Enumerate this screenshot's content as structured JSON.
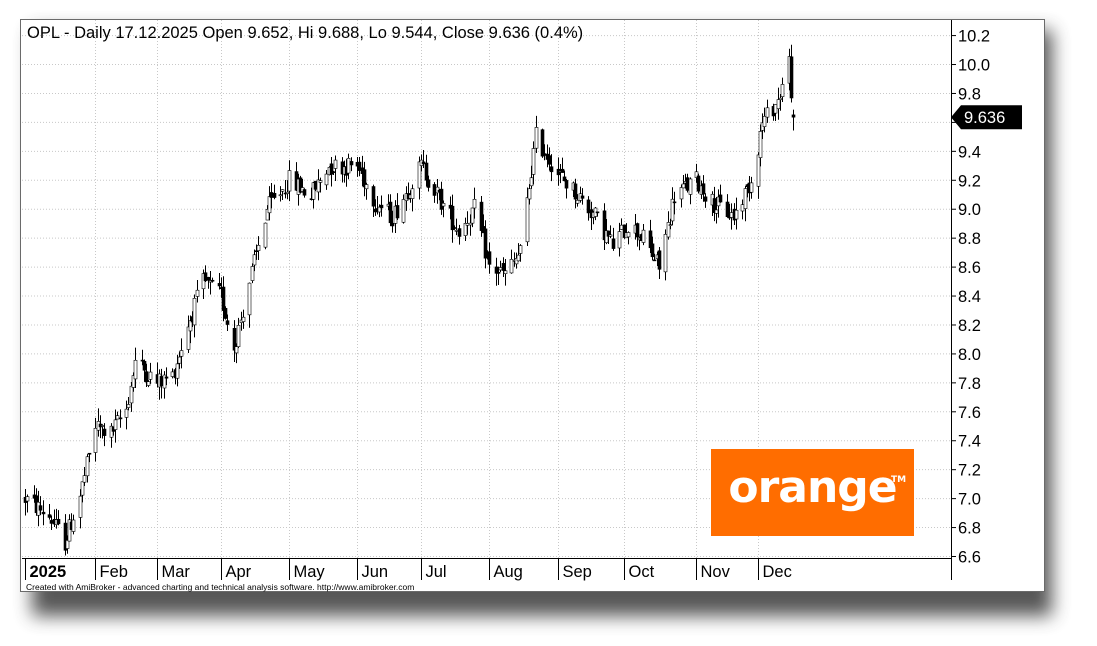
{
  "title": "OPL - Daily 17.12.2025 Open 9.652, Hi 9.688, Lo 9.544, Close 9.636 (0.4%)",
  "credit": "Created with AmiBroker - advanced charting and technical analysis software. http://www.amibroker.com",
  "logo": {
    "text": "orange",
    "tm": "TM",
    "color": "#ff6d00"
  },
  "chart_data": {
    "type": "candlestick",
    "symbol": "OPL",
    "last_price_label": "9.636",
    "ylim": [
      6.58,
      10.25
    ],
    "y_ticks": [
      "6.6",
      "6.8",
      "7.0",
      "7.2",
      "7.4",
      "7.6",
      "7.8",
      "8.0",
      "8.2",
      "8.4",
      "8.6",
      "8.8",
      "9.0",
      "9.2",
      "9.4",
      "9.6",
      "9.8",
      "10.0",
      "10.2"
    ],
    "x_labels": [
      {
        "label": "2025",
        "date": "2025-01-02",
        "bold": true
      },
      {
        "label": "Feb",
        "date": "2025-02-03"
      },
      {
        "label": "Mar",
        "date": "2025-03-03"
      },
      {
        "label": "Apr",
        "date": "2025-04-01"
      },
      {
        "label": "May",
        "date": "2025-05-02"
      },
      {
        "label": "Jun",
        "date": "2025-06-02"
      },
      {
        "label": "Jul",
        "date": "2025-07-01"
      },
      {
        "label": "Aug",
        "date": "2025-08-01"
      },
      {
        "label": "Sep",
        "date": "2025-09-01"
      },
      {
        "label": "Oct",
        "date": "2025-10-01"
      },
      {
        "label": "Nov",
        "date": "2025-11-03"
      },
      {
        "label": "Dec",
        "date": "2025-12-01"
      }
    ],
    "series_colors": {
      "up": "#ffffff",
      "down": "#000000",
      "outline": "#000000",
      "last_price_bg": "#000000"
    },
    "grid": true,
    "x_path": [
      [
        "2025-01-02",
        7.0
      ],
      [
        "2025-01-13",
        6.88
      ],
      [
        "2025-01-20",
        6.7
      ],
      [
        "2025-01-27",
        7.02
      ],
      [
        "2025-02-03",
        7.5
      ],
      [
        "2025-02-10",
        7.45
      ],
      [
        "2025-02-17",
        7.62
      ],
      [
        "2025-02-21",
        7.95
      ],
      [
        "2025-03-03",
        7.8
      ],
      [
        "2025-03-10",
        7.85
      ],
      [
        "2025-03-17",
        8.2
      ],
      [
        "2025-03-24",
        8.5
      ],
      [
        "2025-04-01",
        8.4
      ],
      [
        "2025-04-07",
        8.05
      ],
      [
        "2025-04-14",
        8.5
      ],
      [
        "2025-04-22",
        9.0
      ],
      [
        "2025-05-02",
        9.2
      ],
      [
        "2025-05-12",
        9.1
      ],
      [
        "2025-05-20",
        9.3
      ],
      [
        "2025-06-02",
        9.3
      ],
      [
        "2025-06-10",
        9.05
      ],
      [
        "2025-06-18",
        8.95
      ],
      [
        "2025-07-01",
        9.3
      ],
      [
        "2025-07-10",
        9.05
      ],
      [
        "2025-07-18",
        8.85
      ],
      [
        "2025-07-25",
        9.0
      ],
      [
        "2025-08-01",
        8.6
      ],
      [
        "2025-08-08",
        8.55
      ],
      [
        "2025-08-15",
        8.7
      ],
      [
        "2025-08-22",
        9.5
      ],
      [
        "2025-09-01",
        9.25
      ],
      [
        "2025-09-10",
        9.1
      ],
      [
        "2025-09-18",
        8.95
      ],
      [
        "2025-09-26",
        8.75
      ],
      [
        "2025-10-03",
        8.9
      ],
      [
        "2025-10-10",
        8.8
      ],
      [
        "2025-10-17",
        8.6
      ],
      [
        "2025-10-24",
        9.1
      ],
      [
        "2025-11-03",
        9.2
      ],
      [
        "2025-11-10",
        9.05
      ],
      [
        "2025-11-20",
        8.95
      ],
      [
        "2025-11-28",
        9.2
      ],
      [
        "2025-12-03",
        9.6
      ],
      [
        "2025-12-10",
        9.75
      ],
      [
        "2025-12-15",
        10.02
      ],
      [
        "2025-12-17",
        9.636
      ]
    ]
  }
}
